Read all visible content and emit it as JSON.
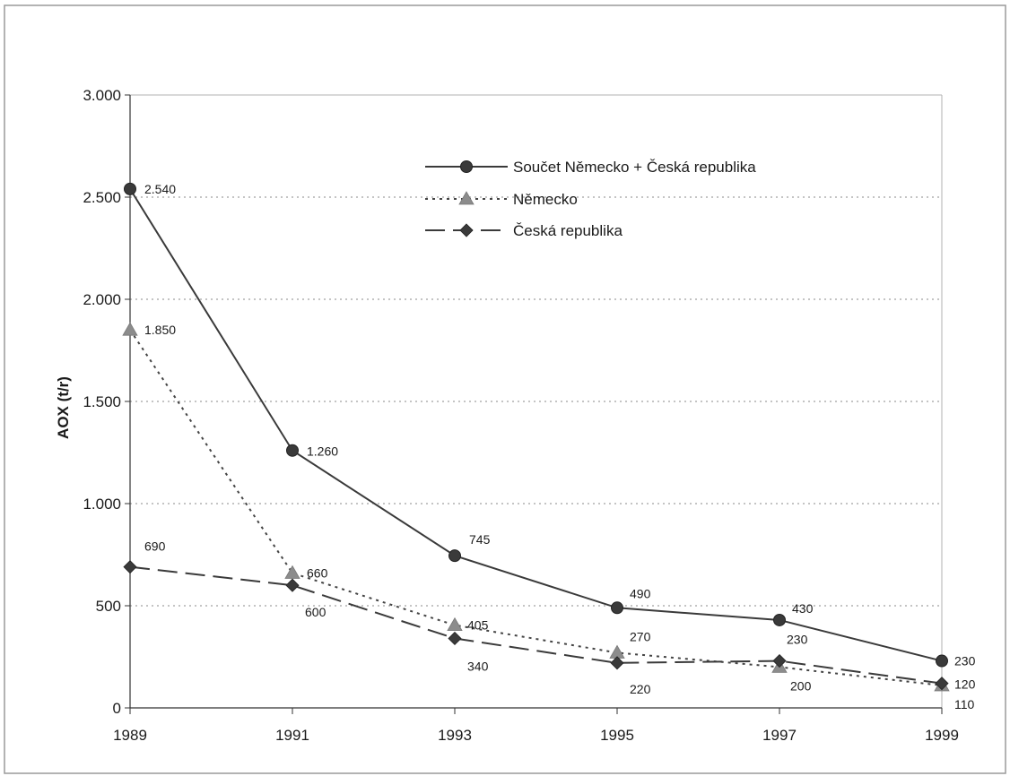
{
  "chart_data": {
    "type": "line",
    "x": [
      "1989",
      "1991",
      "1993",
      "1995",
      "1997",
      "1999"
    ],
    "xlabel": "",
    "ylabel": "AOX (t/r)",
    "ylim": [
      0,
      3000
    ],
    "yticks": [
      0,
      500,
      1000,
      1500,
      2000,
      2500,
      3000
    ],
    "ytick_labels": [
      "0",
      "500",
      "1.000",
      "1.500",
      "2.000",
      "2.500",
      "3.000"
    ],
    "grid": "horizontal dotted",
    "legend_placement": "top-right inside plot",
    "series": [
      {
        "name": "Součet Německo + Česká republika",
        "values": [
          2540,
          1260,
          745,
          490,
          430,
          230
        ],
        "labels": [
          "2.540",
          "1.260",
          "745",
          "490",
          "430",
          "230"
        ],
        "marker": "circle",
        "line": "solid",
        "color": "#3a3a3a"
      },
      {
        "name": "Německo",
        "values": [
          1850,
          660,
          405,
          270,
          200,
          110
        ],
        "labels": [
          "1.850",
          "660",
          "405",
          "270",
          "200",
          "110"
        ],
        "marker": "triangle",
        "line": "dotted",
        "color": "#8c8c8c"
      },
      {
        "name": "Česká republika",
        "values": [
          690,
          600,
          340,
          220,
          230,
          120
        ],
        "labels": [
          "690",
          "600",
          "340",
          "220",
          "230",
          "120"
        ],
        "marker": "diamond",
        "line": "dashed",
        "color": "#3a3a3a"
      }
    ]
  }
}
